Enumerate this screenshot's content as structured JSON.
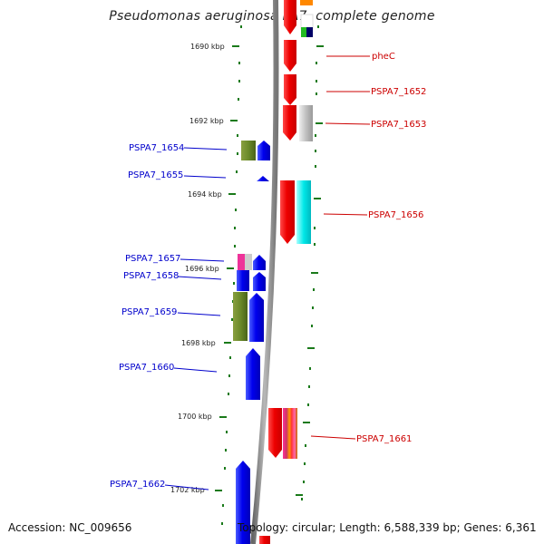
{
  "title": "Pseudomonas aeruginosa PA7, complete genome",
  "footer": {
    "accession": "Accession: NC_009656",
    "summary": "Topology: circular; Length: 6,588,339 bp; Genes: 6,361"
  },
  "scale": {
    "unit": "kbp",
    "ticks": [
      "1690 kbp",
      "1692 kbp",
      "1694 kbp",
      "1696 kbp",
      "1698 kbp",
      "1700 kbp",
      "1702 kbp"
    ]
  },
  "genes_left": [
    "PSPA7_1654",
    "PSPA7_1655",
    "PSPA7_1657",
    "PSPA7_1658",
    "PSPA7_1659",
    "PSPA7_1660",
    "PSPA7_1662"
  ],
  "genes_right": [
    "pheC",
    "PSPA7_1652",
    "PSPA7_1653",
    "PSPA7_1656",
    "PSPA7_1661"
  ],
  "colors": {
    "minus_strand_label": "#0000cc",
    "plus_strand_label": "#cc0000",
    "tick": "#1a7a1a",
    "backbone": "#888888"
  }
}
